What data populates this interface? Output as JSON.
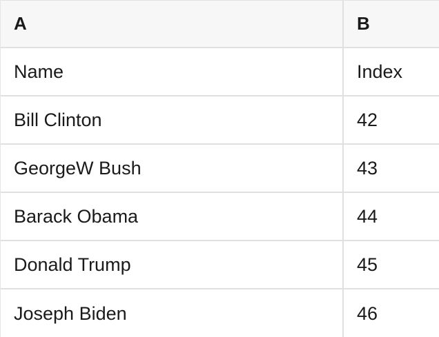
{
  "table": {
    "header": [
      {
        "label": "A"
      },
      {
        "label": "B"
      }
    ],
    "rows": [
      [
        "Name",
        "Index"
      ],
      [
        "Bill Clinton",
        "42"
      ],
      [
        "GeorgeW Bush",
        "43"
      ],
      [
        "Barack Obama",
        "44"
      ],
      [
        "Donald Trump",
        "45"
      ],
      [
        "Joseph Biden",
        "46"
      ]
    ]
  },
  "colors": {
    "header_background": "#f7f7f7",
    "cell_background": "#ffffff",
    "border": "#e0e0e0",
    "text": "#1a1a1a"
  }
}
